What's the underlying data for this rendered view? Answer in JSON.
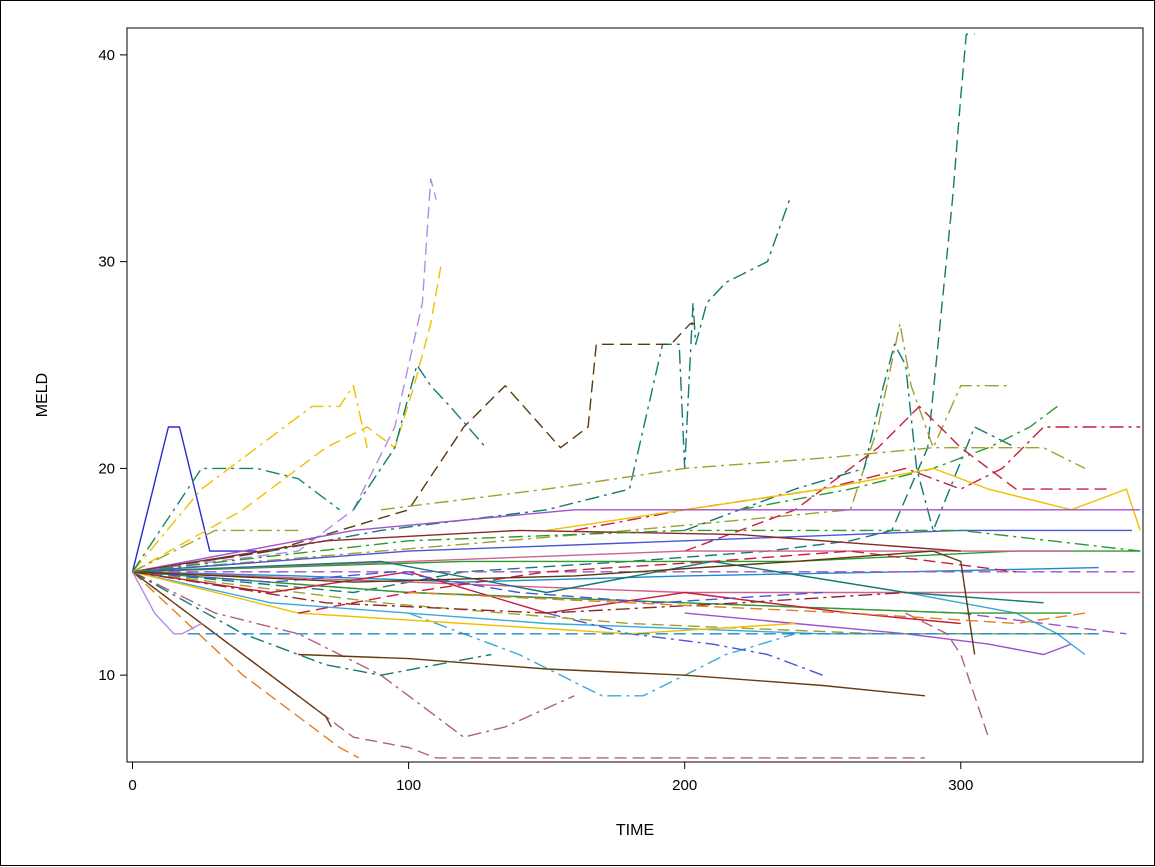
{
  "chart_data": {
    "type": "line",
    "title": "",
    "xlabel": "TIME",
    "ylabel": "MELD",
    "xlim": [
      -2,
      366
    ],
    "ylim": [
      5.8,
      41.3
    ],
    "xticks": [
      0,
      100,
      200,
      300
    ],
    "yticks": [
      10,
      20,
      30,
      40
    ],
    "grid": false,
    "legend": "none",
    "series": [
      {
        "color": "#2a2ad0",
        "dash": "solid",
        "x": [
          0,
          13,
          17,
          28,
          45
        ],
        "y": [
          15,
          22,
          22,
          16,
          16
        ]
      },
      {
        "color": "#137a72",
        "dash": "dash",
        "x": [
          0,
          40,
          80,
          120,
          180,
          230,
          260,
          275,
          288,
          297,
          300,
          302,
          305
        ],
        "y": [
          15,
          14.5,
          14,
          15,
          15.5,
          16,
          16.5,
          17,
          21,
          33,
          38,
          41,
          41
        ]
      },
      {
        "color": "#137a72",
        "dash": "dashdot",
        "x": [
          0,
          50,
          90,
          120,
          150,
          180,
          192,
          198,
          200,
          203,
          204,
          208,
          215,
          230,
          238
        ],
        "y": [
          15,
          16,
          17,
          17.5,
          18,
          19,
          26,
          26,
          20,
          28,
          26,
          28,
          29,
          30,
          33
        ]
      },
      {
        "color": "#5a3a10",
        "dash": "dash",
        "x": [
          0,
          50,
          100,
          120,
          135,
          155,
          165,
          168,
          175,
          195,
          202,
          205
        ],
        "y": [
          15,
          16,
          18,
          22,
          24,
          21,
          22,
          26,
          26,
          26,
          27,
          27
        ]
      },
      {
        "color": "#b48ae8",
        "dash": "dash",
        "x": [
          0,
          30,
          60,
          80,
          95,
          105,
          108,
          110
        ],
        "y": [
          15,
          15.5,
          16,
          18,
          22,
          28,
          34,
          33
        ]
      },
      {
        "color": "#f0c000",
        "dash": "dash",
        "x": [
          0,
          40,
          70,
          85,
          95,
          102,
          108,
          112
        ],
        "y": [
          15,
          18,
          21,
          22,
          21,
          24,
          27,
          30
        ]
      },
      {
        "color": "#f0c000",
        "dash": "dashdot",
        "x": [
          0,
          25,
          45,
          65,
          75,
          80,
          85
        ],
        "y": [
          15,
          19,
          21,
          23,
          23,
          24,
          21
        ]
      },
      {
        "color": "#1a8a5a",
        "dash": "dashdot",
        "x": [
          0,
          25,
          45,
          60,
          75
        ],
        "y": [
          15,
          20,
          20,
          19.5,
          18
        ]
      },
      {
        "color": "#137a72",
        "dash": "dashdot",
        "x": [
          80,
          95,
          103,
          108,
          115,
          128
        ],
        "y": [
          18,
          21,
          25,
          24,
          23,
          21
        ]
      },
      {
        "color": "#a0a030",
        "dash": "dashdot",
        "x": [
          0,
          90,
          180,
          260,
          270,
          278,
          282,
          290,
          300,
          318
        ],
        "y": [
          15,
          16,
          17,
          18,
          22,
          27,
          24,
          21,
          24,
          24
        ]
      },
      {
        "color": "#137a72",
        "dash": "dashdot",
        "x": [
          200,
          240,
          265,
          272,
          276,
          280,
          284,
          290,
          305,
          320
        ],
        "y": [
          17,
          19,
          20,
          24,
          26,
          25,
          20,
          17,
          22,
          21
        ]
      },
      {
        "color": "#2e9a2e",
        "dash": "dashdot",
        "x": [
          220,
          260,
          290,
          310,
          325,
          335
        ],
        "y": [
          18,
          19,
          20,
          21,
          22,
          23
        ]
      },
      {
        "color": "#c81e3c",
        "dash": "dashdot",
        "x": [
          160,
          200,
          250,
          280,
          300,
          315,
          330,
          365
        ],
        "y": [
          17,
          18,
          19,
          20,
          19,
          20,
          22,
          22
        ]
      },
      {
        "color": "#c81e3c",
        "dash": "dash",
        "x": [
          200,
          240,
          270,
          285,
          300,
          320,
          355
        ],
        "y": [
          16,
          18,
          21,
          23,
          21,
          19,
          19
        ]
      },
      {
        "color": "#a0a030",
        "dash": "dashdot",
        "x": [
          90,
          150,
          200,
          250,
          290,
          330,
          345
        ],
        "y": [
          18,
          19,
          20,
          20.5,
          21,
          21,
          20
        ]
      },
      {
        "color": "#f0c000",
        "dash": "solid",
        "x": [
          150,
          200,
          250,
          290,
          310,
          340,
          360,
          365
        ],
        "y": [
          17,
          18,
          19,
          20,
          19,
          18,
          19,
          17
        ]
      },
      {
        "color": "#a050d0",
        "dash": "solid",
        "x": [
          0,
          80,
          160,
          240,
          320,
          365
        ],
        "y": [
          15,
          17,
          18,
          18,
          18,
          18
        ]
      },
      {
        "color": "#4a55d8",
        "dash": "solid",
        "x": [
          0,
          100,
          200,
          300,
          362
        ],
        "y": [
          15,
          16,
          16.5,
          17,
          17
        ]
      },
      {
        "color": "#2e9a2e",
        "dash": "solid",
        "x": [
          0,
          120,
          240,
          320,
          365
        ],
        "y": [
          15,
          15.5,
          15.5,
          16,
          16
        ]
      },
      {
        "color": "#d06090",
        "dash": "solid",
        "x": [
          0,
          100,
          200,
          300,
          340
        ],
        "y": [
          15,
          15.5,
          16,
          16,
          16
        ]
      },
      {
        "color": "#8a2a2a",
        "dash": "solid",
        "x": [
          0,
          70,
          140,
          220,
          300
        ],
        "y": [
          15,
          16.5,
          17,
          16.8,
          16
        ]
      },
      {
        "color": "#1e8ac8",
        "dash": "solid",
        "x": [
          0,
          60,
          120,
          200,
          280,
          350
        ],
        "y": [
          15,
          14.8,
          14.5,
          14.8,
          15,
          15.2
        ]
      },
      {
        "color": "#3aa8d8",
        "dash": "solid",
        "x": [
          0,
          50,
          150,
          250,
          340
        ],
        "y": [
          15,
          13.5,
          12.5,
          12,
          12
        ]
      },
      {
        "color": "#a050d0",
        "dash": "dash",
        "x": [
          0,
          100,
          200,
          300,
          360
        ],
        "y": [
          15,
          14,
          13.5,
          13,
          12
        ]
      },
      {
        "color": "#b06080",
        "dash": "dash",
        "x": [
          0,
          40,
          80,
          100,
          110,
          150,
          200,
          250,
          287
        ],
        "y": [
          15,
          11,
          7,
          6.5,
          6,
          6,
          6,
          6,
          6
        ]
      },
      {
        "color": "#e08020",
        "dash": "dash",
        "x": [
          0,
          20,
          40,
          60,
          75,
          82
        ],
        "y": [
          15,
          12.5,
          10,
          8,
          6.5,
          6
        ]
      },
      {
        "color": "#6a3a10",
        "dash": "solid",
        "x": [
          0,
          25,
          50,
          70,
          72
        ],
        "y": [
          15,
          12.5,
          10,
          8,
          7.5
        ]
      },
      {
        "color": "#b06080",
        "dash": "dashdot",
        "x": [
          0,
          30,
          60,
          90,
          110,
          120,
          135,
          160
        ],
        "y": [
          15,
          13,
          12,
          10,
          8,
          7,
          7.5,
          9
        ]
      },
      {
        "color": "#3aa8d8",
        "dash": "dashdot",
        "x": [
          100,
          140,
          170,
          185,
          200,
          215,
          240
        ],
        "y": [
          13,
          11,
          9,
          9,
          10,
          11,
          12
        ]
      },
      {
        "color": "#6a3a10",
        "dash": "solid",
        "x": [
          60,
          100,
          150,
          200,
          250,
          287
        ],
        "y": [
          11,
          10.8,
          10.3,
          10,
          9.5,
          9
        ]
      },
      {
        "color": "#137a72",
        "dash": "dashdot",
        "x": [
          0,
          40,
          70,
          90,
          110,
          130
        ],
        "y": [
          15,
          12,
          10.5,
          10,
          10.5,
          11
        ]
      },
      {
        "color": "#b48ae8",
        "dash": "solid",
        "x": [
          0,
          8,
          15,
          18,
          25
        ],
        "y": [
          15,
          13,
          12,
          12,
          12.5
        ]
      },
      {
        "color": "#4a55d8",
        "dash": "dashdot",
        "x": [
          150,
          180,
          210,
          230,
          250
        ],
        "y": [
          13,
          12,
          11.5,
          11,
          10
        ]
      },
      {
        "color": "#a050d0",
        "dash": "solid",
        "x": [
          200,
          240,
          280,
          310,
          330,
          340
        ],
        "y": [
          13,
          12.5,
          12,
          11.5,
          11,
          11.5
        ]
      },
      {
        "color": "#3aa8d8",
        "dash": "solid",
        "x": [
          280,
          300,
          320,
          335,
          345
        ],
        "y": [
          14,
          13.5,
          13,
          12,
          11
        ]
      },
      {
        "color": "#2e9a2e",
        "dash": "solid",
        "x": [
          0,
          100,
          200,
          300,
          340
        ],
        "y": [
          15,
          14,
          13.5,
          13,
          13
        ]
      },
      {
        "color": "#a0a030",
        "dash": "dash",
        "x": [
          0,
          90,
          180,
          270,
          350
        ],
        "y": [
          15,
          13.5,
          12.5,
          12,
          12
        ]
      },
      {
        "color": "#d06090",
        "dash": "solid",
        "x": [
          0,
          100,
          200,
          300,
          365
        ],
        "y": [
          15,
          14.5,
          14,
          14,
          14
        ]
      },
      {
        "color": "#c81e3c",
        "dash": "solid",
        "x": [
          0,
          50,
          100,
          150,
          200,
          260,
          300
        ],
        "y": [
          15,
          14,
          15,
          13,
          14,
          13,
          12.5
        ]
      },
      {
        "color": "#f0c000",
        "dash": "solid",
        "x": [
          0,
          60,
          120,
          180,
          240
        ],
        "y": [
          15,
          13,
          12.5,
          12,
          12.5
        ]
      },
      {
        "color": "#1e8ac8",
        "dash": "dash",
        "x": [
          20,
          80,
          140,
          200,
          260,
          320,
          350
        ],
        "y": [
          12,
          12,
          12,
          12,
          12,
          12,
          12
        ]
      },
      {
        "color": "#a050d0",
        "dash": "dash",
        "x": [
          0,
          120,
          240,
          320,
          365
        ],
        "y": [
          15,
          15,
          15,
          15,
          15
        ]
      },
      {
        "color": "#137a72",
        "dash": "solid",
        "x": [
          0,
          90,
          150,
          210,
          280,
          330
        ],
        "y": [
          15,
          15.5,
          14,
          15.5,
          14,
          13.5
        ]
      },
      {
        "color": "#4a55d8",
        "dash": "dash",
        "x": [
          0,
          50,
          95,
          140,
          190,
          250
        ],
        "y": [
          15,
          14.5,
          15,
          14,
          13.5,
          14
        ]
      },
      {
        "color": "#c81e3c",
        "dash": "dash",
        "x": [
          60,
          100,
          150,
          210,
          260,
          320
        ],
        "y": [
          13,
          14,
          15,
          15.5,
          16,
          15
        ]
      },
      {
        "color": "#5a3a10",
        "dash": "solid",
        "x": [
          0,
          80,
          160,
          240,
          290,
          300,
          305
        ],
        "y": [
          15,
          14.5,
          14.8,
          15.5,
          16,
          15.5,
          11
        ]
      },
      {
        "color": "#b06080",
        "dash": "dash",
        "x": [
          280,
          295,
          300,
          305,
          310
        ],
        "y": [
          13,
          12,
          11,
          9,
          7
        ]
      },
      {
        "color": "#2e9a2e",
        "dash": "dashdot",
        "x": [
          0,
          100,
          200,
          300,
          365
        ],
        "y": [
          15,
          16.5,
          17,
          17,
          16
        ]
      },
      {
        "color": "#8a2a2a",
        "dash": "dashdot",
        "x": [
          0,
          70,
          150,
          220,
          280
        ],
        "y": [
          15,
          13.5,
          13,
          13.5,
          14
        ]
      },
      {
        "color": "#e08020",
        "dash": "dash",
        "x": [
          100,
          180,
          260,
          320,
          345
        ],
        "y": [
          14,
          13.5,
          13,
          12.5,
          13
        ]
      },
      {
        "color": "#a0a030",
        "dash": "dashdot",
        "x": [
          0,
          30,
          60
        ],
        "y": [
          15,
          17,
          17
        ]
      }
    ]
  }
}
